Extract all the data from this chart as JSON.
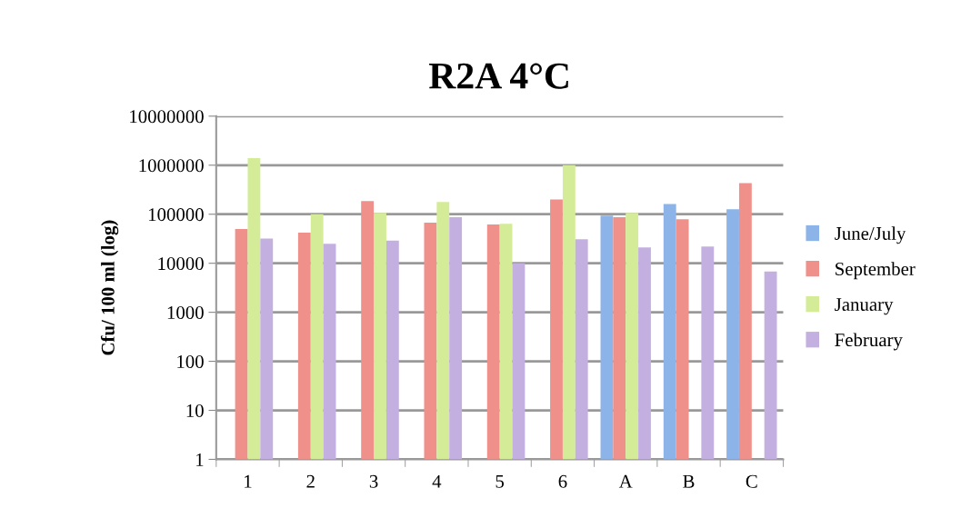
{
  "chart_data": {
    "type": "bar",
    "title": "R2A 4°C",
    "ylabel": "Cfu/ 100 ml (log)",
    "categories": [
      "1",
      "2",
      "3",
      "4",
      "5",
      "6",
      "A",
      "B",
      "C"
    ],
    "series": [
      {
        "name": "June/July",
        "color": "#8db4e8",
        "values": [
          null,
          null,
          null,
          null,
          null,
          null,
          94000,
          162000,
          126000
        ]
      },
      {
        "name": "September",
        "color": "#f0908a",
        "values": [
          50000,
          42000,
          185000,
          67000,
          62000,
          200000,
          87000,
          79000,
          430000
        ]
      },
      {
        "name": "January",
        "color": "#d4ec98",
        "values": [
          1400000,
          100000,
          106000,
          178000,
          64000,
          1000000,
          106000,
          null,
          null
        ]
      },
      {
        "name": "February",
        "color": "#c4b0e0",
        "values": [
          32000,
          25000,
          29000,
          87000,
          10000,
          31000,
          21000,
          22000,
          6800
        ]
      }
    ],
    "log": true,
    "ylim": [
      1,
      10000000
    ],
    "yticks": [
      1,
      10,
      100,
      1000,
      10000,
      100000,
      1000000,
      10000000
    ],
    "grid": "y",
    "legend": "right"
  }
}
